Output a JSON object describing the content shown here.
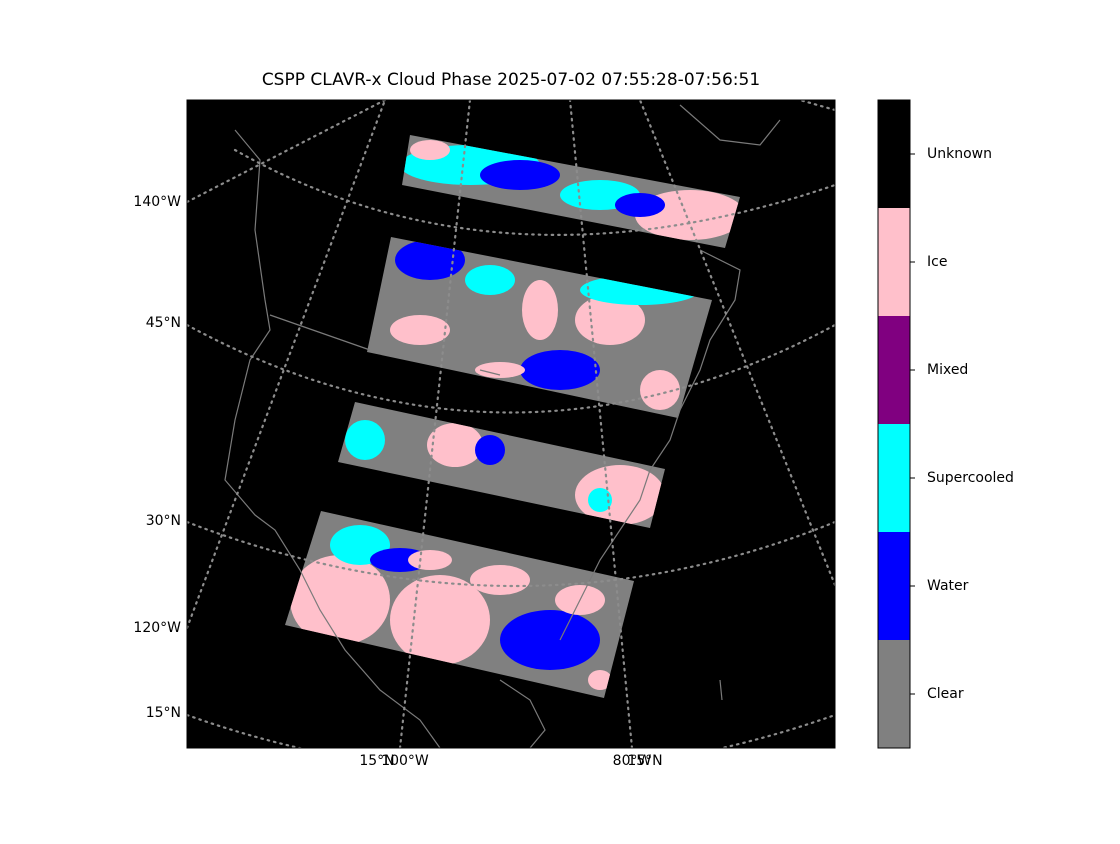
{
  "title": "CSPP CLAVR-x Cloud Phase 2025-07-02 07:55:28-07:56:51",
  "map": {
    "left_labels": [
      "140°W",
      "45°N",
      "30°N",
      "120°W",
      "15°N"
    ],
    "bottom_labels": [
      "15°N",
      "100°W",
      "80°W",
      "15°N"
    ]
  },
  "colorbar": {
    "items": [
      {
        "label": "Clear",
        "color": "#808080"
      },
      {
        "label": "Water",
        "color": "#0000ff"
      },
      {
        "label": "Supercooled",
        "color": "#00ffff"
      },
      {
        "label": "Mixed",
        "color": "#800080"
      },
      {
        "label": "Ice",
        "color": "#ffc0cb"
      },
      {
        "label": "Unknown",
        "color": "#000000"
      }
    ]
  }
}
